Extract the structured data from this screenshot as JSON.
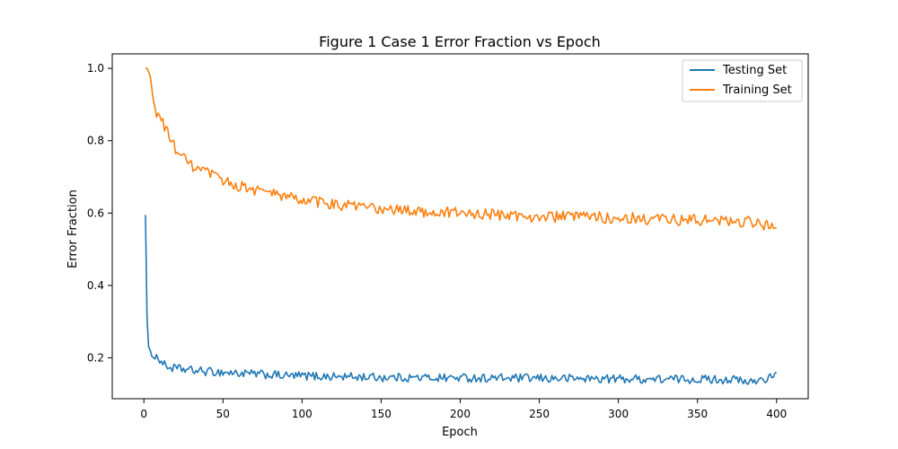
{
  "chart_data": {
    "type": "line",
    "title": "Figure 1 Case 1 Error Fraction vs Epoch",
    "xlabel": "Epoch",
    "ylabel": "Error Fraction",
    "xlim": [
      -20,
      420
    ],
    "ylim": [
      0.087,
      1.04
    ],
    "xticks": [
      0,
      50,
      100,
      150,
      200,
      250,
      300,
      350,
      400
    ],
    "yticks": [
      0.2,
      0.4,
      0.6,
      0.8,
      1.0
    ],
    "ytick_labels": [
      "0.2",
      "0.4",
      "0.6",
      "0.8",
      "1.0"
    ],
    "grid": false,
    "legend_position": "top-right",
    "series": [
      {
        "name": "Testing Set",
        "color": "#1f77b4",
        "x": [
          1,
          2,
          3,
          4,
          5,
          7,
          10,
          13,
          15,
          20,
          25,
          30,
          40,
          50,
          60,
          70,
          80,
          90,
          100,
          120,
          140,
          150,
          175,
          200,
          225,
          250,
          275,
          300,
          325,
          350,
          375,
          380,
          390,
          400
        ],
        "y": [
          0.595,
          0.31,
          0.23,
          0.21,
          0.215,
          0.205,
          0.195,
          0.18,
          0.175,
          0.17,
          0.168,
          0.165,
          0.162,
          0.16,
          0.157,
          0.155,
          0.153,
          0.15,
          0.15,
          0.148,
          0.147,
          0.146,
          0.145,
          0.145,
          0.144,
          0.143,
          0.143,
          0.142,
          0.141,
          0.141,
          0.14,
          0.13,
          0.14,
          0.15
        ],
        "noise": 0.012
      },
      {
        "name": "Training Set",
        "color": "#ff7f0e",
        "x": [
          1,
          2,
          3,
          5,
          7,
          10,
          13,
          15,
          20,
          25,
          30,
          40,
          50,
          60,
          70,
          80,
          90,
          100,
          120,
          140,
          150,
          175,
          200,
          225,
          250,
          275,
          300,
          325,
          350,
          375,
          380,
          390,
          400
        ],
        "y": [
          1.0,
          1.0,
          0.99,
          0.95,
          0.88,
          0.87,
          0.84,
          0.82,
          0.78,
          0.75,
          0.73,
          0.71,
          0.69,
          0.675,
          0.665,
          0.655,
          0.645,
          0.635,
          0.625,
          0.615,
          0.61,
          0.605,
          0.6,
          0.595,
          0.59,
          0.59,
          0.587,
          0.583,
          0.58,
          0.578,
          0.576,
          0.57,
          0.565
        ],
        "noise": 0.016
      }
    ]
  }
}
